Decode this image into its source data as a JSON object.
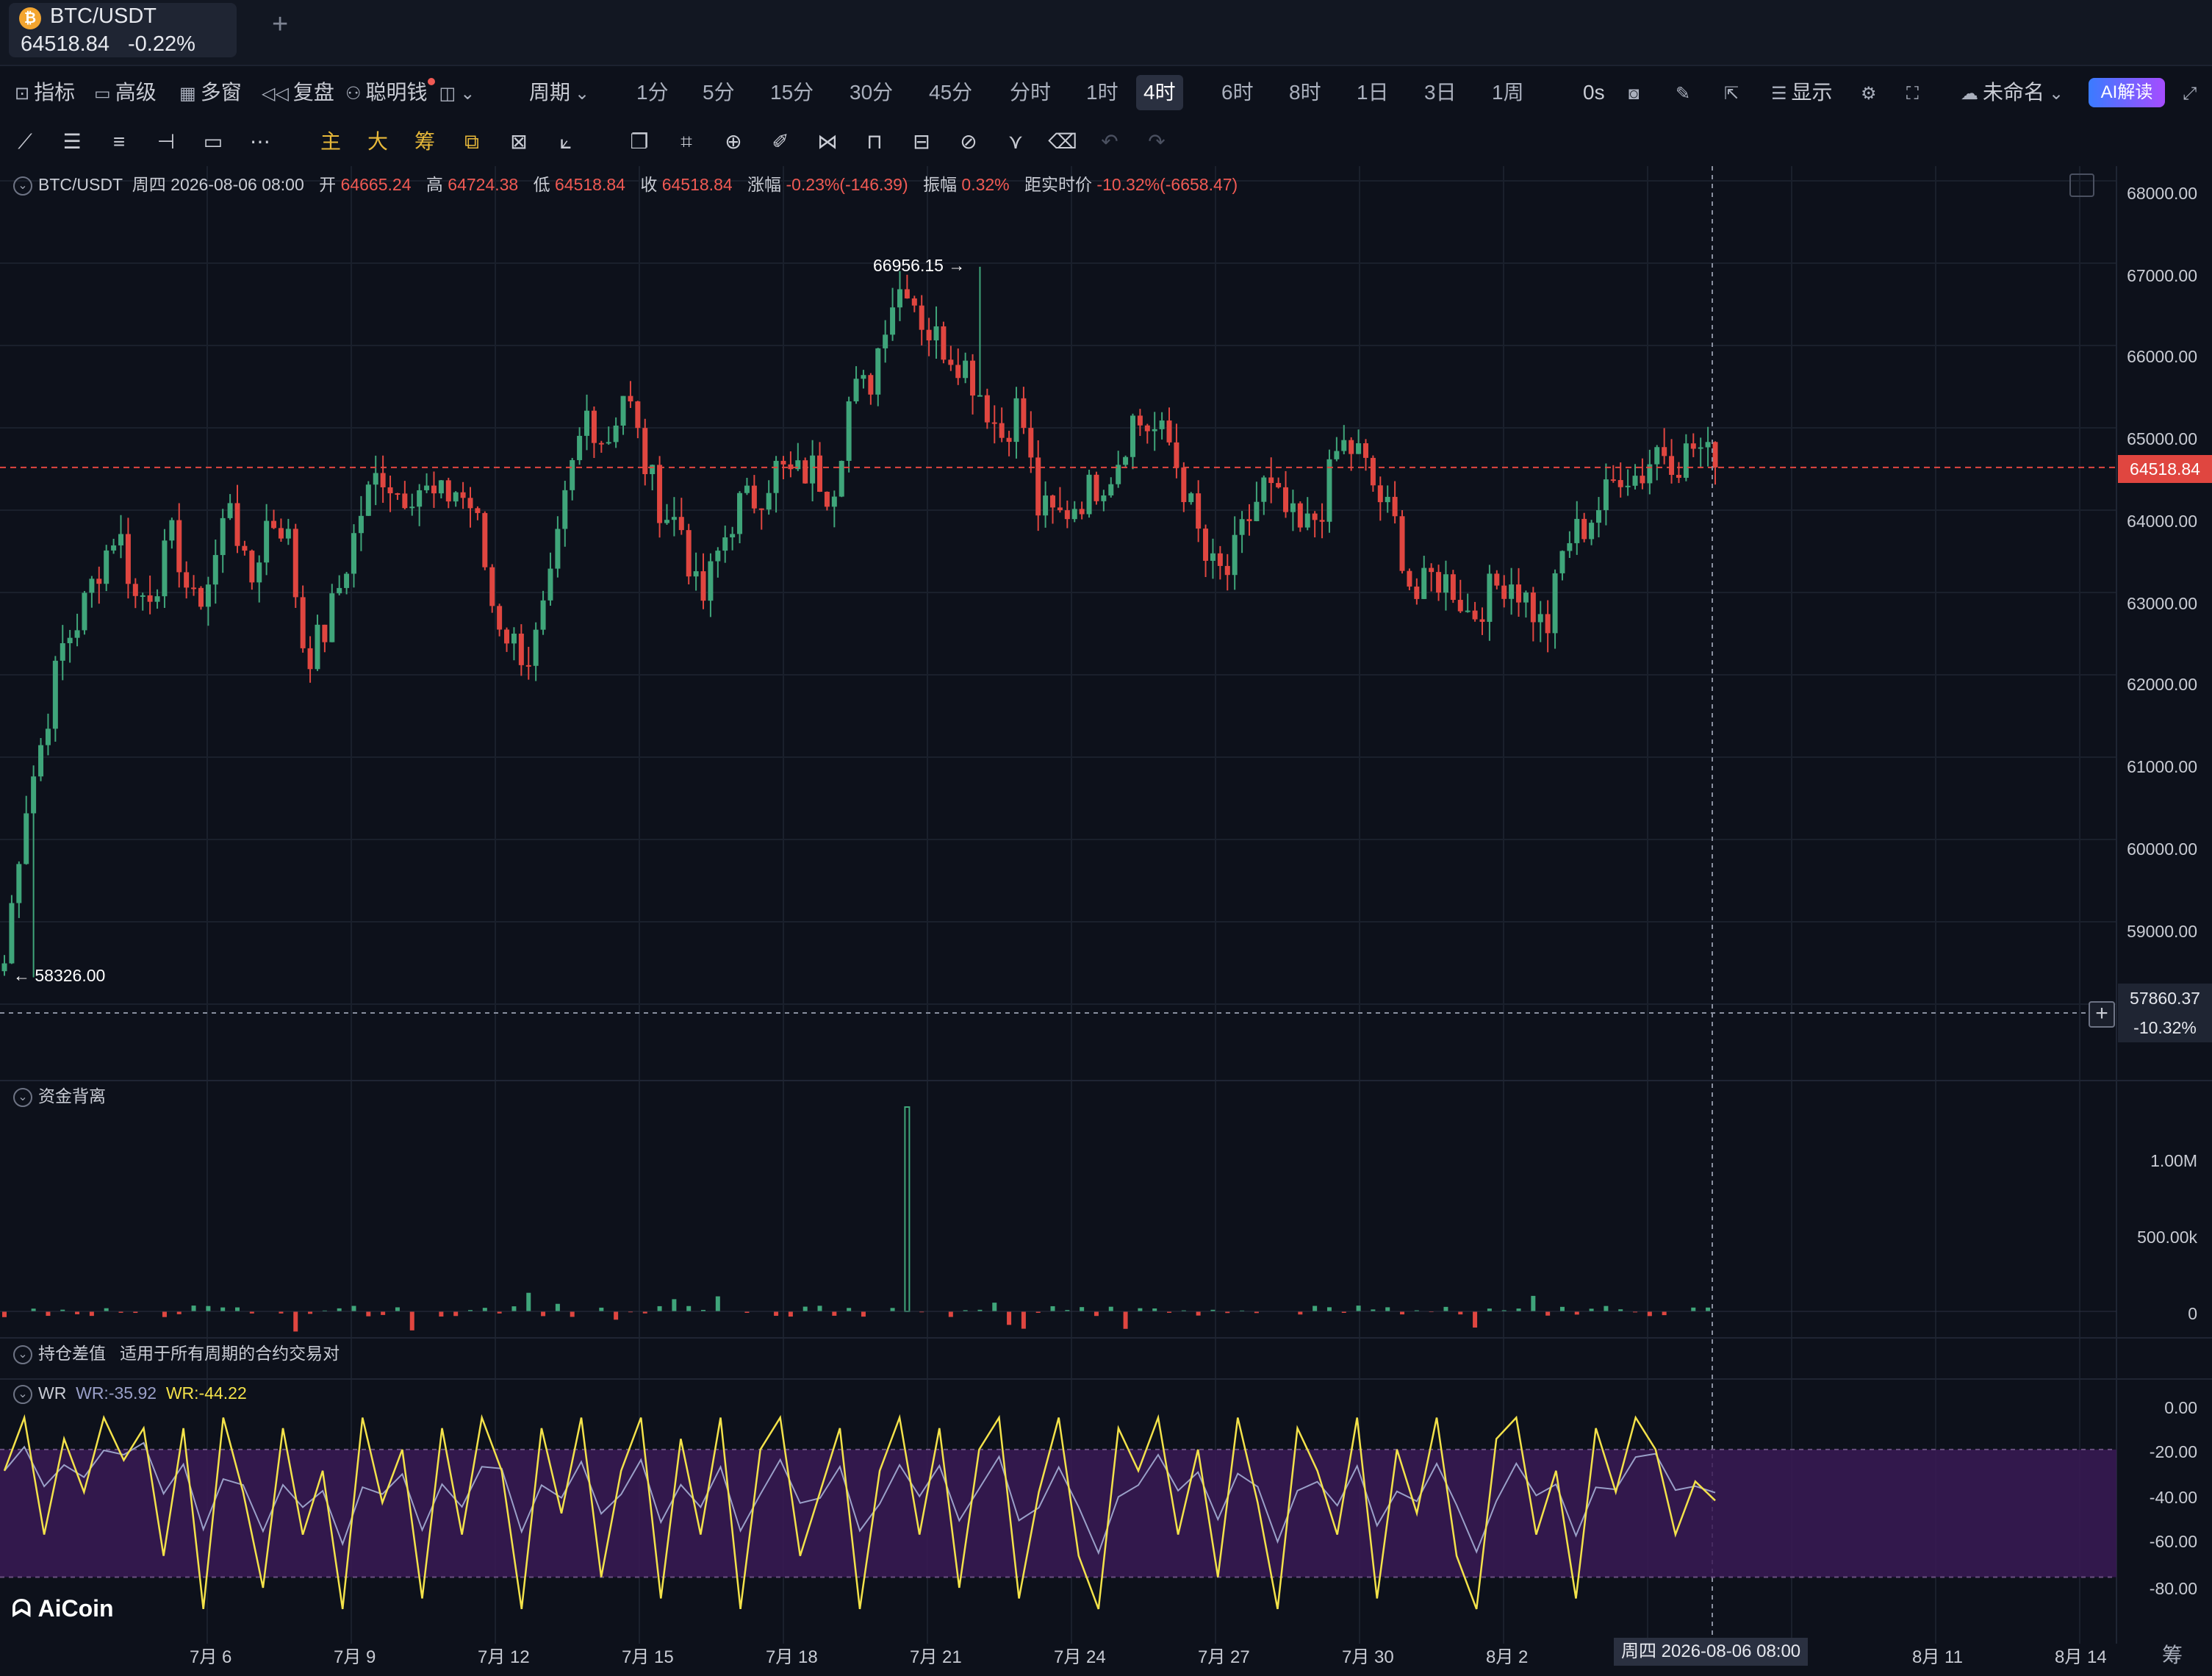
{
  "tab": {
    "coin_icon": "bitcoin-icon",
    "symbol": "BTC/USDT",
    "price": "64518.84",
    "change": "-0.22%",
    "add": "+"
  },
  "toolbar": {
    "left_items": [
      {
        "icon": "chart-icon",
        "label": "指标"
      },
      {
        "icon": "folder-icon",
        "label": "高级"
      },
      {
        "icon": "grid-icon",
        "label": "多窗"
      },
      {
        "icon": "rewind-icon",
        "label": "复盘"
      },
      {
        "icon": "smart-money-icon",
        "label": "聪明钱"
      }
    ],
    "period_label": "周期",
    "periods": [
      "1分",
      "5分",
      "15分",
      "30分",
      "45分",
      "分时",
      "1时",
      "4时",
      "6时",
      "8时",
      "1日",
      "3日",
      "1周"
    ],
    "selected_period": "4时",
    "countdown": "0s",
    "display": "显示",
    "layout_name": "未命名",
    "ai": "AI解读",
    "right_icons": [
      "camera-icon",
      "pencil-icon",
      "share-icon",
      "display-icon",
      "settings-icon",
      "fullscreen-icon",
      "cloud-icon",
      "expand-icon"
    ]
  },
  "drawing_tools": {
    "icons": [
      "trend-line-icon",
      "horizontal-lines-icon",
      "parallel-lines-icon",
      "horizontal-ray-icon",
      "rectangle-icon",
      "more-dots-icon"
    ],
    "yellow": [
      "主",
      "大",
      "筹"
    ],
    "yellow_icons": [
      "overlay-icon",
      "compare-icon",
      "measure-icon"
    ],
    "tools": [
      "copy-icon",
      "ruler-icon",
      "zoom-icon",
      "brush-icon",
      "magnet-icon",
      "lock-icon",
      "edit-icon",
      "link-icon",
      "filter-icon",
      "trash-icon",
      "undo-icon",
      "redo-icon"
    ]
  },
  "info": {
    "pair": "BTC/USDT",
    "datetime": "周四 2026-08-06 08:00",
    "open_label": "开",
    "open": "64665.24",
    "high_label": "高",
    "high": "64724.38",
    "low_label": "低",
    "low": "64518.84",
    "close_label": "收",
    "close": "64518.84",
    "change_label": "涨幅",
    "change": "-0.23%(-146.39)",
    "amp_label": "振幅",
    "amp": "0.32%",
    "dist_label": "距实时价",
    "dist": "-10.32%(-6658.47)"
  },
  "price_axis": [
    "68000.00",
    "67000.00",
    "66000.00",
    "65000.00",
    "64000.00",
    "63000.00",
    "62000.00",
    "61000.00",
    "60000.00",
    "59000.00"
  ],
  "current_price": "64518.84",
  "crosshair": {
    "price": "57860.37",
    "pct": "-10.32%",
    "time": "周四 2026-08-06 08:00"
  },
  "high_marker": "66956.15 →",
  "low_marker": "← 58326.00",
  "panes": {
    "fund": "资金背离",
    "oi": "持仓差值",
    "oi_desc": "适用于所有周期的合约交易对",
    "wr": "WR",
    "wr1": "WR:-35.92",
    "wr2": "WR:-44.22"
  },
  "fund_axis": [
    "1.00M",
    "500.00k",
    "0"
  ],
  "wr_axis": [
    "0.00",
    "-20.00",
    "-40.00",
    "-60.00",
    "-80.00"
  ],
  "x_axis": [
    "7月 6",
    "7月 9",
    "7月 12",
    "7月 15",
    "7月 18",
    "7月 21",
    "7月 24",
    "7月 27",
    "7月 30",
    "8月 2",
    "8月 11",
    "8月 14"
  ],
  "logo": "AiCoin",
  "corner": "筹",
  "colors": {
    "up": "#3fa57a",
    "down": "#e04640",
    "bg": "#0d111b",
    "wr_fast": "#f3e24a",
    "wr_slow": "#9aa0c8",
    "band": "#3a1a55"
  },
  "chart_data": {
    "type": "candlestick",
    "timeframe": "4h",
    "ylim": [
      57400,
      68200
    ],
    "high": 66956.15,
    "low": 58326.0,
    "last": 64518.84,
    "close_path": [
      58500,
      60300,
      61200,
      62300,
      62700,
      63300,
      63800,
      62900,
      63100,
      63700,
      62800,
      63200,
      64200,
      63000,
      63900,
      63800,
      62200,
      62500,
      63200,
      64000,
      64500,
      64200,
      64300,
      64100,
      64250,
      64000,
      62800,
      62400,
      62200,
      63000,
      64300,
      65200,
      64800,
      65500,
      64600,
      64000,
      63800,
      62800,
      63500,
      64050,
      64150,
      64500,
      64400,
      64500,
      64200,
      65400,
      65500,
      66500,
      66800,
      66200,
      66000,
      65800,
      65400,
      64900,
      65300,
      64000,
      63900,
      64100,
      64300,
      64500,
      65100,
      65000,
      64800,
      64100,
      63300,
      63200,
      63800,
      64300,
      64000,
      63700,
      64000,
      64800,
      64700,
      64200,
      63800,
      62900,
      63200,
      63100,
      62700,
      63000,
      63200,
      62900,
      62500,
      63600,
      63800,
      64100,
      64500,
      64400,
      64800,
      64600,
      64800,
      64518.84
    ],
    "wr_fast_path": [
      -30,
      -5,
      -60,
      -15,
      -40,
      -5,
      -25,
      -10,
      -70,
      -10,
      -95,
      -5,
      -40,
      -85,
      -10,
      -60,
      -30,
      -95,
      -5,
      -45,
      -20,
      -90,
      -10,
      -60,
      -5,
      -30,
      -95,
      -10,
      -50,
      -5,
      -80,
      -30,
      -5,
      -90,
      -15,
      -60,
      -5,
      -95,
      -20,
      -5,
      -70,
      -40,
      -10,
      -95,
      -30,
      -5,
      -60,
      -10,
      -85,
      -20,
      -5,
      -90,
      -40,
      -5,
      -70,
      -95,
      -10,
      -30,
      -5,
      -60,
      -20,
      -80,
      -5,
      -45,
      -95,
      -10,
      -30,
      -60,
      -5,
      -90,
      -20,
      -50,
      -5,
      -70,
      -95,
      -15,
      -5,
      -60,
      -30,
      -90,
      -10,
      -40,
      -5,
      -20,
      -60,
      -35,
      -44
    ],
    "fund_volume_spike_x": "7月 21"
  }
}
